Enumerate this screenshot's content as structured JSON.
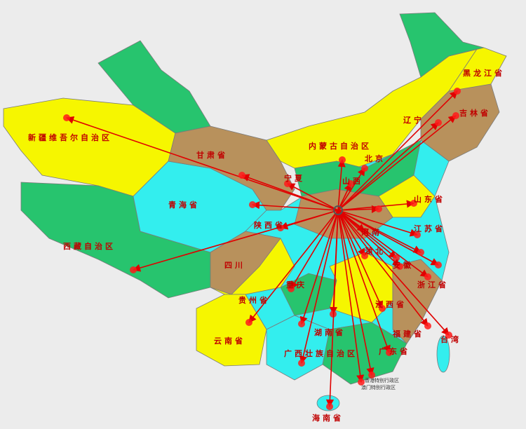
{
  "map": {
    "labels": [
      "新疆维吾尔自治区",
      "西藏自治区",
      "青海省",
      "甘肃省",
      "内蒙古自治区",
      "黑龙江省",
      "吉林省",
      "辽宁",
      "北京",
      "山西",
      "山东省",
      "河南",
      "陕西省",
      "宁夏",
      "四川",
      "重庆",
      "贵州省",
      "湖北",
      "湖南省",
      "江西省",
      "安徽",
      "江苏省",
      "浙江省",
      "福建省",
      "广东省",
      "广西壮族自治区",
      "云南省",
      "海南省",
      "台湾",
      "香港特别行政区",
      "澳门特别行政区"
    ]
  }
}
